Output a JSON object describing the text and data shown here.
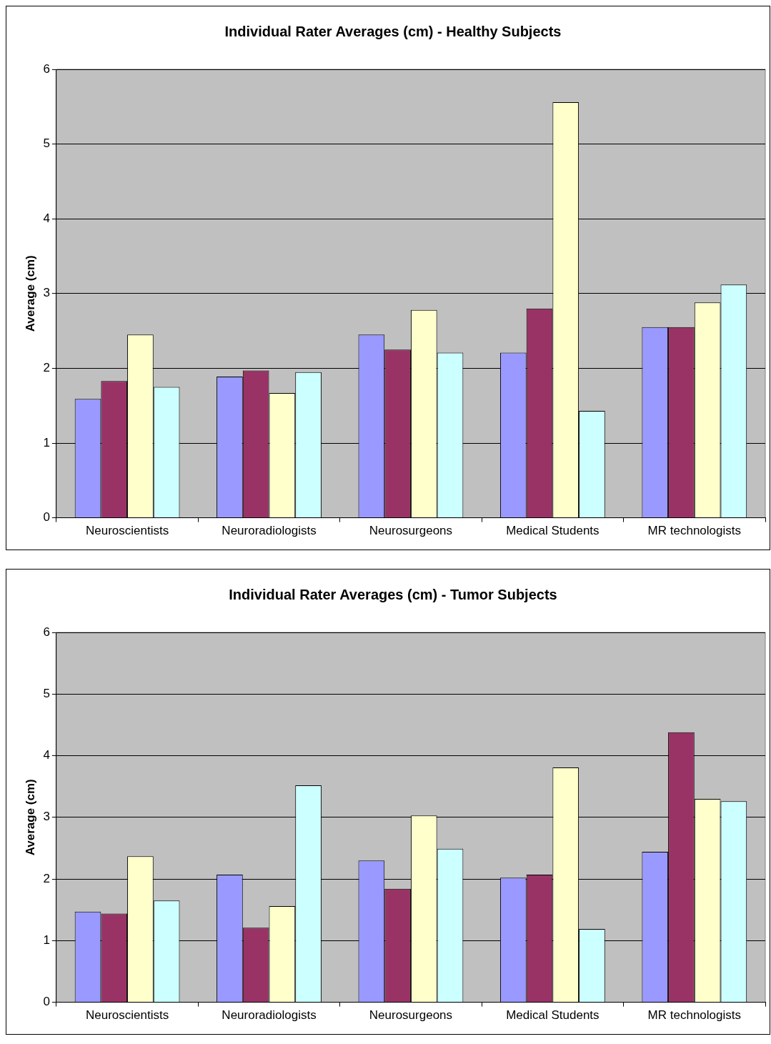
{
  "chart_data": [
    {
      "type": "bar",
      "title": "Individual Rater Averages (cm) - Healthy Subjects",
      "ylabel": "Average (cm)",
      "categories": [
        "Neuroscientists",
        "Neuroradiologists",
        "Neurosurgeons",
        "Medical Students",
        "MR technologists"
      ],
      "series": [
        {
          "color": "#9999ff",
          "values": [
            1.59,
            1.89,
            2.45,
            2.21,
            2.55
          ]
        },
        {
          "color": "#993366",
          "values": [
            1.83,
            1.97,
            2.25,
            2.8,
            2.55
          ]
        },
        {
          "color": "#ffffcc",
          "values": [
            2.45,
            1.67,
            2.78,
            5.56,
            2.88
          ]
        },
        {
          "color": "#ccffff",
          "values": [
            1.75,
            1.95,
            2.21,
            1.43,
            3.12
          ]
        }
      ],
      "ylim": [
        0,
        6
      ],
      "yticks": [
        0,
        1,
        2,
        3,
        4,
        5,
        6
      ],
      "grid": "y",
      "legend": false
    },
    {
      "type": "bar",
      "title": "Individual Rater Averages (cm) - Tumor Subjects",
      "ylabel": "Average (cm)",
      "categories": [
        "Neuroscientists",
        "Neuroradiologists",
        "Neurosurgeons",
        "Medical Students",
        "MR technologists"
      ],
      "series": [
        {
          "color": "#9999ff",
          "values": [
            1.47,
            2.07,
            2.3,
            2.02,
            2.44
          ]
        },
        {
          "color": "#993366",
          "values": [
            1.44,
            1.21,
            1.84,
            2.07,
            4.38
          ]
        },
        {
          "color": "#ffffcc",
          "values": [
            2.37,
            1.56,
            3.03,
            3.81,
            3.3
          ]
        },
        {
          "color": "#ccffff",
          "values": [
            1.65,
            3.52,
            2.49,
            1.19,
            3.26
          ]
        }
      ],
      "ylim": [
        0,
        6
      ],
      "yticks": [
        0,
        1,
        2,
        3,
        4,
        5,
        6
      ],
      "grid": "y",
      "legend": false
    }
  ]
}
